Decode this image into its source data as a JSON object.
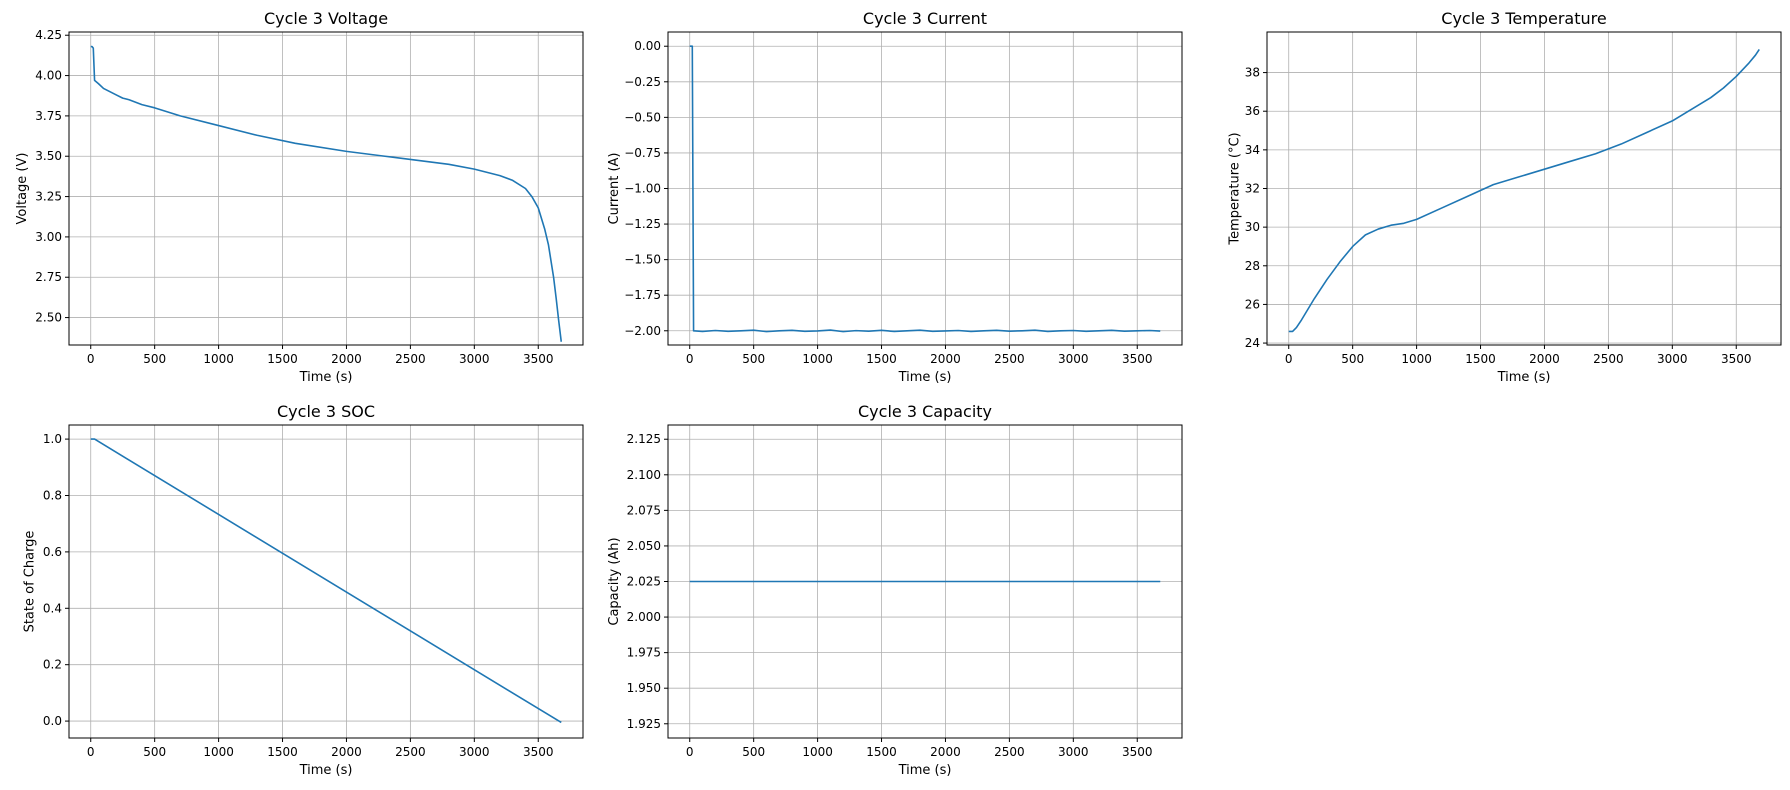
{
  "chart_data": [
    {
      "type": "line",
      "title": "Cycle 3 Voltage",
      "xlabel": "Time (s)",
      "ylabel": "Voltage (V)",
      "xlim": [
        -170,
        3850
      ],
      "ylim": [
        2.33,
        4.27
      ],
      "xticks": [
        0,
        500,
        1000,
        1500,
        2000,
        2500,
        3000,
        3500
      ],
      "yticks": [
        2.5,
        2.75,
        3.0,
        3.25,
        3.5,
        3.75,
        4.0,
        4.25
      ],
      "ytick_decimals": 2,
      "grid": true,
      "color": "#1f77b4",
      "series": [
        {
          "x": [
            0,
            10,
            20,
            30,
            60,
            100,
            150,
            200,
            250,
            300,
            400,
            500,
            700,
            1000,
            1300,
            1600,
            2000,
            2400,
            2800,
            3000,
            3100,
            3200,
            3300,
            3400,
            3450,
            3500,
            3550,
            3580,
            3600,
            3620,
            3640,
            3660,
            3680
          ],
          "y": [
            4.18,
            4.18,
            4.17,
            3.97,
            3.95,
            3.92,
            3.9,
            3.88,
            3.86,
            3.85,
            3.82,
            3.8,
            3.75,
            3.69,
            3.63,
            3.58,
            3.53,
            3.49,
            3.45,
            3.42,
            3.4,
            3.38,
            3.35,
            3.3,
            3.25,
            3.18,
            3.05,
            2.95,
            2.85,
            2.75,
            2.62,
            2.48,
            2.35
          ]
        }
      ]
    },
    {
      "type": "line",
      "title": "Cycle 3 Current",
      "xlabel": "Time (s)",
      "ylabel": "Current (A)",
      "xlim": [
        -170,
        3850
      ],
      "ylim": [
        -2.1,
        0.1
      ],
      "xticks": [
        0,
        500,
        1000,
        1500,
        2000,
        2500,
        3000,
        3500
      ],
      "yticks": [
        -2.0,
        -1.75,
        -1.5,
        -1.25,
        -1.0,
        -0.75,
        -0.5,
        -0.25,
        0.0
      ],
      "ytick_decimals": 2,
      "grid": true,
      "color": "#1f77b4",
      "series": [
        {
          "x": [
            0,
            10,
            20,
            30,
            100,
            200,
            300,
            400,
            500,
            600,
            700,
            800,
            900,
            1000,
            1100,
            1200,
            1300,
            1400,
            1500,
            1600,
            1700,
            1800,
            1900,
            2000,
            2100,
            2200,
            2300,
            2400,
            2500,
            2600,
            2700,
            2800,
            2900,
            3000,
            3100,
            3200,
            3300,
            3400,
            3500,
            3600,
            3680
          ],
          "y": [
            0.0,
            0.0,
            0.0,
            -2.0,
            -2.005,
            -1.998,
            -2.004,
            -2.0,
            -1.996,
            -2.006,
            -2.0,
            -1.997,
            -2.004,
            -2.001,
            -1.995,
            -2.006,
            -1.999,
            -2.003,
            -1.997,
            -2.005,
            -2.0,
            -1.996,
            -2.004,
            -2.001,
            -1.998,
            -2.005,
            -2.0,
            -1.997,
            -2.003,
            -2.0,
            -1.996,
            -2.005,
            -2.0,
            -1.998,
            -2.004,
            -2.0,
            -1.997,
            -2.003,
            -2.0,
            -1.998,
            -2.002
          ]
        }
      ]
    },
    {
      "type": "line",
      "title": "Cycle 3 Temperature",
      "xlabel": "Time (s)",
      "ylabel": "Temperature (°C)",
      "xlim": [
        -170,
        3850
      ],
      "ylim": [
        23.9,
        40.1
      ],
      "xticks": [
        0,
        500,
        1000,
        1500,
        2000,
        2500,
        3000,
        3500
      ],
      "yticks": [
        24,
        26,
        28,
        30,
        32,
        34,
        36,
        38
      ],
      "ytick_decimals": 0,
      "grid": true,
      "color": "#1f77b4",
      "series": [
        {
          "x": [
            0,
            30,
            60,
            100,
            200,
            300,
            400,
            500,
            600,
            700,
            800,
            900,
            1000,
            1200,
            1400,
            1600,
            1800,
            2000,
            2200,
            2400,
            2600,
            2800,
            3000,
            3200,
            3300,
            3400,
            3500,
            3600,
            3650,
            3680
          ],
          "y": [
            24.6,
            24.6,
            24.8,
            25.2,
            26.3,
            27.3,
            28.2,
            29.0,
            29.6,
            29.9,
            30.1,
            30.2,
            30.4,
            31.0,
            31.6,
            32.2,
            32.6,
            33.0,
            33.4,
            33.8,
            34.3,
            34.9,
            35.5,
            36.3,
            36.7,
            37.2,
            37.8,
            38.5,
            38.9,
            39.2
          ]
        }
      ]
    },
    {
      "type": "line",
      "title": "Cycle 3 SOC",
      "xlabel": "Time (s)",
      "ylabel": "State of Charge",
      "xlim": [
        -170,
        3850
      ],
      "ylim": [
        -0.06,
        1.05
      ],
      "xticks": [
        0,
        500,
        1000,
        1500,
        2000,
        2500,
        3000,
        3500
      ],
      "yticks": [
        0.0,
        0.2,
        0.4,
        0.6,
        0.8,
        1.0
      ],
      "ytick_decimals": 1,
      "grid": true,
      "color": "#1f77b4",
      "series": [
        {
          "x": [
            0,
            30,
            3680
          ],
          "y": [
            1.0,
            1.0,
            -0.005
          ]
        }
      ]
    },
    {
      "type": "line",
      "title": "Cycle 3 Capacity",
      "xlabel": "Time (s)",
      "ylabel": "Capacity (Ah)",
      "xlim": [
        -170,
        3850
      ],
      "ylim": [
        1.915,
        2.135
      ],
      "xticks": [
        0,
        500,
        1000,
        1500,
        2000,
        2500,
        3000,
        3500
      ],
      "yticks": [
        1.925,
        1.95,
        1.975,
        2.0,
        2.025,
        2.05,
        2.075,
        2.1,
        2.125
      ],
      "ytick_decimals": 3,
      "grid": true,
      "color": "#1f77b4",
      "series": [
        {
          "x": [
            0,
            3680
          ],
          "y": [
            2.025,
            2.025
          ]
        }
      ]
    }
  ]
}
